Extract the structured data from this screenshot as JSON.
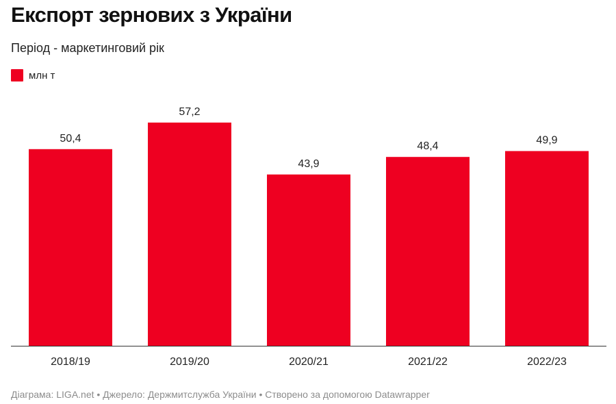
{
  "header": {
    "title": "Експорт зернових з України",
    "subtitle": "Період - маркетинговий рік"
  },
  "footer": {
    "text": "Діаграма: LIGA.net • Джерело: Держмитслужба України • Створено за допомогою Datawrapper"
  },
  "colors": {
    "bar": "#ee0021",
    "axis": "#333333"
  },
  "chart_data": {
    "type": "bar",
    "categories": [
      "2018/19",
      "2019/20",
      "2020/21",
      "2021/22",
      "2022/23"
    ],
    "series": [
      {
        "name": "млн т",
        "values": [
          50.4,
          57.2,
          43.9,
          48.4,
          49.9
        ],
        "labels": [
          "50,4",
          "57,2",
          "43,9",
          "48,4",
          "49,9"
        ]
      }
    ],
    "ylim": [
      0,
      57.2
    ],
    "grid": false,
    "legend_position": "top-left"
  }
}
